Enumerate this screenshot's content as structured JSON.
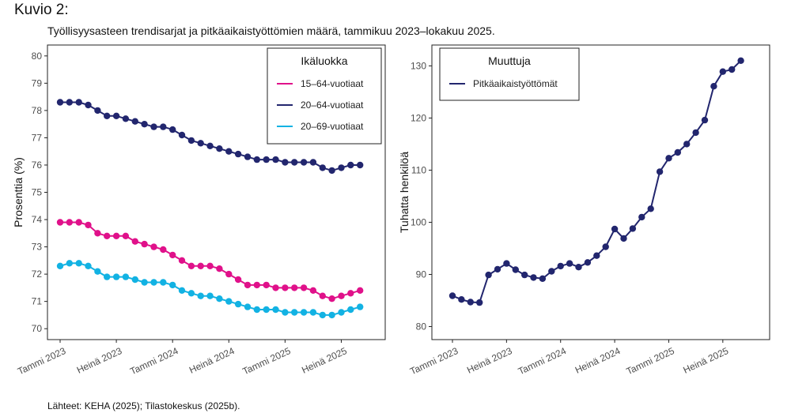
{
  "figure": {
    "heading": "Kuvio 2:",
    "subtitle": "Työllisyysasteen trendisarjat ja pitkäaikaistyöttömien määrä, tammikuu 2023–lokakuu 2025.",
    "source": "Lähteet: KEHA (2025); Tilastokeskus (2025b)."
  },
  "chart_data": [
    {
      "type": "line",
      "title": "",
      "xlabel": "",
      "ylabel": "Prosenttia (%)",
      "ylim": [
        69.6,
        80.4
      ],
      "yticks": [
        70,
        71,
        72,
        73,
        74,
        75,
        76,
        77,
        78,
        79,
        80
      ],
      "xticks": [
        {
          "label": "Tammi 2023",
          "index": 0
        },
        {
          "label": "Heinä 2023",
          "index": 6
        },
        {
          "label": "Tammi 2024",
          "index": 12
        },
        {
          "label": "Heinä 2024",
          "index": 18
        },
        {
          "label": "Tammi 2025",
          "index": 24
        },
        {
          "label": "Heinä 2025",
          "index": 30
        }
      ],
      "x": [
        "2023-01",
        "2023-02",
        "2023-03",
        "2023-04",
        "2023-05",
        "2023-06",
        "2023-07",
        "2023-08",
        "2023-09",
        "2023-10",
        "2023-11",
        "2023-12",
        "2024-01",
        "2024-02",
        "2024-03",
        "2024-04",
        "2024-05",
        "2024-06",
        "2024-07",
        "2024-08",
        "2024-09",
        "2024-10",
        "2024-11",
        "2024-12",
        "2025-01",
        "2025-02",
        "2025-03",
        "2025-04",
        "2025-05",
        "2025-06",
        "2025-07",
        "2025-08",
        "2025-09",
        "2025-10"
      ],
      "legend": {
        "title": "Ikäluokka",
        "position": "top-right"
      },
      "series": [
        {
          "name": "15–64-vuotiaat",
          "color": "#e0118a",
          "values": [
            73.9,
            73.9,
            73.9,
            73.8,
            73.5,
            73.4,
            73.4,
            73.4,
            73.2,
            73.1,
            73.0,
            72.9,
            72.7,
            72.5,
            72.3,
            72.3,
            72.3,
            72.2,
            72.0,
            71.8,
            71.6,
            71.6,
            71.6,
            71.5,
            71.5,
            71.5,
            71.5,
            71.4,
            71.2,
            71.1,
            71.2,
            71.3,
            71.4,
            null
          ]
        },
        {
          "name": "20–64-vuotiaat",
          "color": "#22266e",
          "values": [
            78.3,
            78.3,
            78.3,
            78.2,
            78.0,
            77.8,
            77.8,
            77.7,
            77.6,
            77.5,
            77.4,
            77.4,
            77.3,
            77.1,
            76.9,
            76.8,
            76.7,
            76.6,
            76.5,
            76.4,
            76.3,
            76.2,
            76.2,
            76.2,
            76.1,
            76.1,
            76.1,
            76.1,
            75.9,
            75.8,
            75.9,
            76.0,
            76.0,
            null
          ]
        },
        {
          "name": "20–69-vuotiaat",
          "color": "#12b2e3",
          "values": [
            72.3,
            72.4,
            72.4,
            72.3,
            72.1,
            71.9,
            71.9,
            71.9,
            71.8,
            71.7,
            71.7,
            71.7,
            71.6,
            71.4,
            71.3,
            71.2,
            71.2,
            71.1,
            71.0,
            70.9,
            70.8,
            70.7,
            70.7,
            70.7,
            70.6,
            70.6,
            70.6,
            70.6,
            70.5,
            70.5,
            70.6,
            70.7,
            70.8,
            null
          ]
        }
      ]
    },
    {
      "type": "line",
      "title": "",
      "xlabel": "",
      "ylabel": "Tuhatta henkilöä",
      "ylim": [
        77.5,
        134
      ],
      "yticks": [
        80,
        90,
        100,
        110,
        120,
        130
      ],
      "xticks": [
        {
          "label": "Tammi 2023",
          "index": 0
        },
        {
          "label": "Heinä 2023",
          "index": 6
        },
        {
          "label": "Tammi 2024",
          "index": 12
        },
        {
          "label": "Heinä 2024",
          "index": 18
        },
        {
          "label": "Tammi 2025",
          "index": 24
        },
        {
          "label": "Heinä 2025",
          "index": 30
        }
      ],
      "x": [
        "2023-01",
        "2023-02",
        "2023-03",
        "2023-04",
        "2023-05",
        "2023-06",
        "2023-07",
        "2023-08",
        "2023-09",
        "2023-10",
        "2023-11",
        "2023-12",
        "2024-01",
        "2024-02",
        "2024-03",
        "2024-04",
        "2024-05",
        "2024-06",
        "2024-07",
        "2024-08",
        "2024-09",
        "2024-10",
        "2024-11",
        "2024-12",
        "2025-01",
        "2025-02",
        "2025-03",
        "2025-04",
        "2025-05",
        "2025-06",
        "2025-07",
        "2025-08",
        "2025-09",
        "2025-10"
      ],
      "legend": {
        "title": "Muuttuja",
        "position": "top-left"
      },
      "series": [
        {
          "name": "Pitkäaikaistyöttömät",
          "color": "#22266e",
          "values": [
            85.9,
            85.2,
            84.7,
            84.6,
            89.9,
            91.0,
            92.1,
            90.9,
            89.9,
            89.4,
            89.2,
            90.6,
            91.6,
            92.1,
            91.4,
            92.3,
            93.6,
            95.3,
            98.7,
            96.9,
            98.8,
            101.0,
            102.6,
            109.7,
            112.3,
            113.4,
            115.0,
            117.2,
            119.6,
            126.1,
            128.9,
            129.3,
            131.0,
            null
          ]
        }
      ]
    }
  ]
}
